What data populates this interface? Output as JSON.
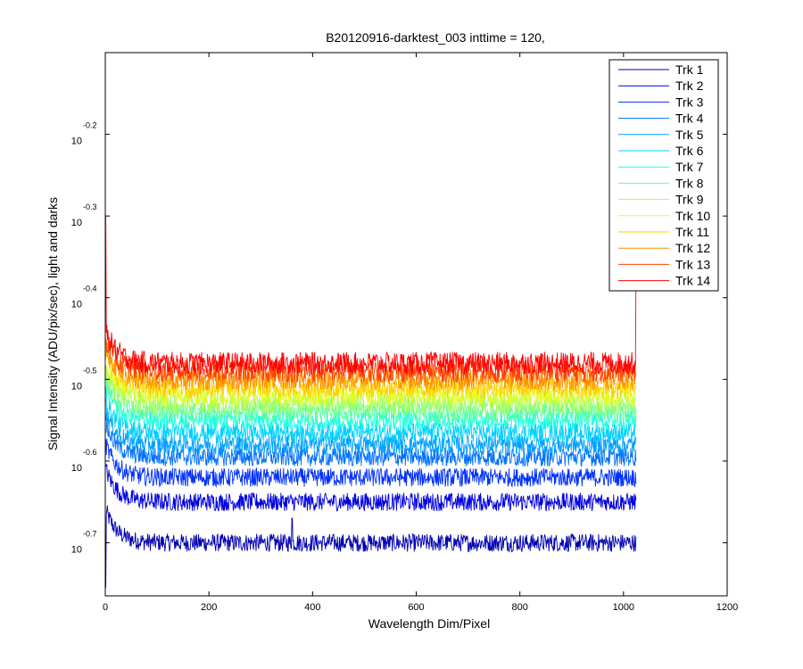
{
  "chart_data": {
    "type": "line",
    "title": "B20120916-darktest_003 inttime = 120,",
    "xlabel": "Wavelength Dim/Pixel",
    "ylabel": "Signal Intensity (ADU/pix/sec), light and darks",
    "xlim": [
      0,
      1200
    ],
    "ylim": [
      -0.765,
      -0.1
    ],
    "yscale": "log",
    "x_ticks": [
      0,
      200,
      400,
      600,
      800,
      1000,
      1200
    ],
    "y_ticks": [
      {
        "base": "10",
        "exp": "-0.2",
        "value": -0.2
      },
      {
        "base": "10",
        "exp": "-0.3",
        "value": -0.3
      },
      {
        "base": "10",
        "exp": "-0.4",
        "value": -0.4
      },
      {
        "base": "10",
        "exp": "-0.5",
        "value": -0.5
      },
      {
        "base": "10",
        "exp": "-0.6",
        "value": -0.6
      },
      {
        "base": "10",
        "exp": "-0.7",
        "value": -0.7
      }
    ],
    "legend_position": "top-right",
    "pixel_range": [
      1,
      1024
    ],
    "series": [
      {
        "name": "Trk 1",
        "color": "#0000b0",
        "plateau_log10": -0.7,
        "start_log10": -0.66
      },
      {
        "name": "Trk 2",
        "color": "#0000e0",
        "plateau_log10": -0.65,
        "start_log10": -0.61
      },
      {
        "name": "Trk 3",
        "color": "#0030ff",
        "plateau_log10": -0.62,
        "start_log10": -0.58
      },
      {
        "name": "Trk 4",
        "color": "#0070ff",
        "plateau_log10": -0.595,
        "start_log10": -0.555
      },
      {
        "name": "Trk 5",
        "color": "#00a0ff",
        "plateau_log10": -0.58,
        "start_log10": -0.54
      },
      {
        "name": "Trk 6",
        "color": "#00d0ff",
        "plateau_log10": -0.565,
        "start_log10": -0.525
      },
      {
        "name": "Trk 7",
        "color": "#20ffe0",
        "plateau_log10": -0.55,
        "start_log10": -0.51
      },
      {
        "name": "Trk 8",
        "color": "#60ff a0",
        "plateau_log10": -0.54,
        "start_log10": -0.5
      },
      {
        "name": "Trk 9",
        "color": "#a0ff60",
        "plateau_log10": -0.53,
        "start_log10": -0.49
      },
      {
        "name": "Trk 10",
        "color": "#e0ff20",
        "plateau_log10": -0.52,
        "start_log10": -0.48
      },
      {
        "name": "Trk 11",
        "color": "#ffd000",
        "plateau_log10": -0.51,
        "start_log10": -0.47
      },
      {
        "name": "Trk 12",
        "color": "#ff9000",
        "plateau_log10": -0.5,
        "start_log10": -0.46
      },
      {
        "name": "Trk 13",
        "color": "#ff4000",
        "plateau_log10": -0.49,
        "start_log10": -0.45
      },
      {
        "name": "Trk 14",
        "color": "#ff0000",
        "plateau_log10": -0.48,
        "start_log10": -0.44
      }
    ]
  }
}
